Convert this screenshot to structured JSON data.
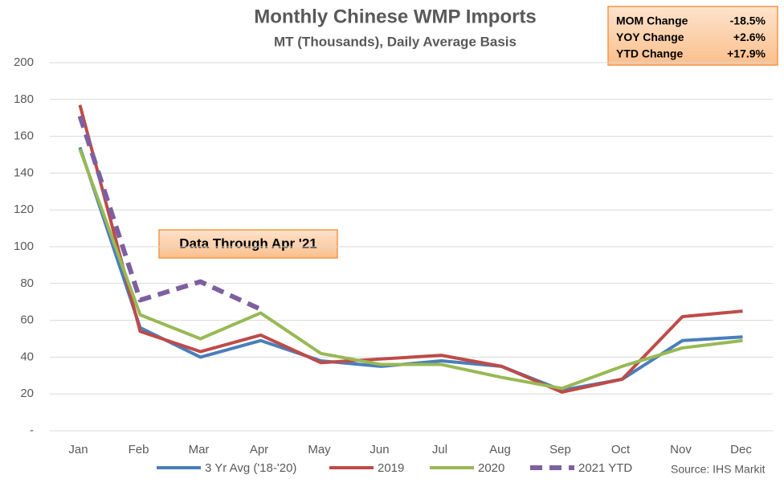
{
  "chart_data": {
    "type": "line",
    "title": "Monthly Chinese WMP Imports",
    "subtitle": "MT (Thousands), Daily Average Basis",
    "categories": [
      "Jan",
      "Feb",
      "Mar",
      "Apr",
      "May",
      "Jun",
      "Jul",
      "Aug",
      "Sep",
      "Oct",
      "Nov",
      "Dec"
    ],
    "series": [
      {
        "name": "3 Yr Avg ('18-'20)",
        "color": "#4a7ebb",
        "values": [
          154,
          56,
          40,
          49,
          38,
          35,
          38,
          35,
          22,
          28,
          49,
          51
        ]
      },
      {
        "name": "2019",
        "color": "#be4b48",
        "values": [
          177,
          54,
          43,
          52,
          37,
          39,
          41,
          35,
          21,
          28,
          62,
          65
        ]
      },
      {
        "name": "2020",
        "color": "#98b954",
        "values": [
          153,
          63,
          50,
          64,
          42,
          36,
          36,
          29,
          23,
          35,
          45,
          49
        ]
      },
      {
        "name": "2021 YTD",
        "color": "#7d60a0",
        "dashed": true,
        "values": [
          171,
          71,
          81,
          66,
          null,
          null,
          null,
          null,
          null,
          null,
          null,
          null
        ]
      }
    ],
    "ylim": [
      0,
      200
    ],
    "yticks": [
      {
        "value": 0,
        "label": "-"
      },
      20,
      40,
      60,
      80,
      100,
      120,
      140,
      160,
      180,
      200
    ],
    "grid": true,
    "legend": "bottom",
    "annotation": "Data Through Apr '21",
    "stats": [
      {
        "label": "MOM Change",
        "value": "-18.5%"
      },
      {
        "label": "YOY Change",
        "value": "+2.6%"
      },
      {
        "label": "YTD Change",
        "value": "+17.9%"
      }
    ],
    "source": "Source: IHS Markit"
  }
}
